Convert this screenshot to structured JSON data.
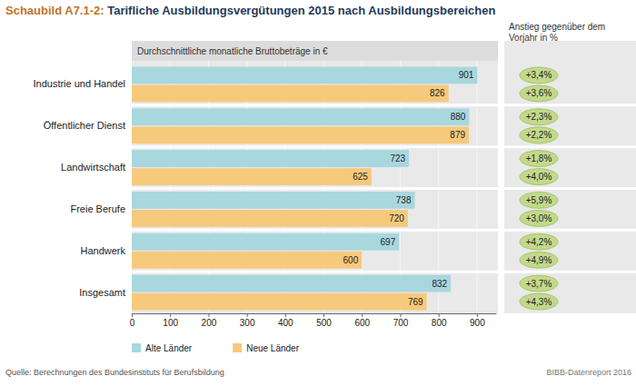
{
  "chart_data": {
    "type": "bar",
    "orientation": "horizontal",
    "title": "Schaubild A7.1-2: Tarifliche Ausbildungsvergütungen 2015 nach Ausbildungsbereichen",
    "subtitle": "Durchschnittliche monatliche Bruttobeträge in €",
    "change_title": "Anstieg gegenüber dem Vorjahr in %",
    "source": "Quelle: Berechnungen des Bundesinstituts für Berufsbildung",
    "credit": "BIBB-Datenreport 2016",
    "categories": [
      "Industrie und Handel",
      "Öffentlicher Dienst",
      "Landwirtschaft",
      "Freie Berufe",
      "Handwerk",
      "Insgesamt"
    ],
    "series": [
      {
        "name": "Alte Länder",
        "color": "#a9d7de",
        "values": [
          901,
          880,
          723,
          738,
          697,
          832
        ],
        "change": [
          3.4,
          2.3,
          1.8,
          5.9,
          4.2,
          3.7
        ],
        "change_labels": [
          "+3,4%",
          "+2,3%",
          "+1,8%",
          "+5,9%",
          "+4,2%",
          "+3,7%"
        ]
      },
      {
        "name": "Neue Länder",
        "color": "#f6c97c",
        "values": [
          826,
          879,
          625,
          720,
          600,
          769
        ],
        "change": [
          3.6,
          2.2,
          4.0,
          3.0,
          4.9,
          4.3
        ],
        "change_labels": [
          "+3,6%",
          "+2,2%",
          "+4,0%",
          "+3,0%",
          "+4,9%",
          "+4,3%"
        ]
      }
    ],
    "xlim": [
      0,
      950
    ],
    "xticks": [
      0,
      100,
      200,
      300,
      400,
      500,
      600,
      700,
      800,
      900
    ],
    "grid": true,
    "legend": "bottom",
    "data_labels": true
  }
}
